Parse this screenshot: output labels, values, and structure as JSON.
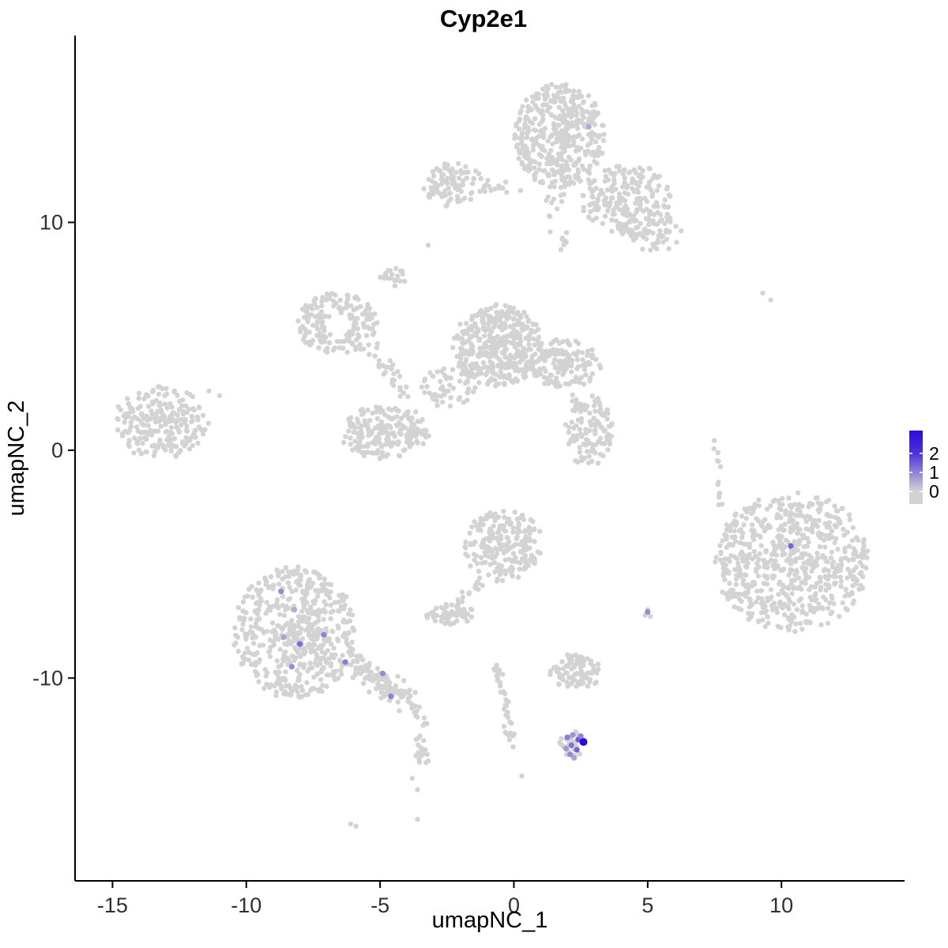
{
  "chart_data": {
    "type": "scatter",
    "title": "Cyp2e1",
    "xlabel": "umapNC_1",
    "ylabel": "umapNC_2",
    "xlim": [
      -16.4,
      14.6
    ],
    "ylim": [
      -18.9,
      18.2
    ],
    "x_ticks": [
      -15,
      -10,
      -5,
      0,
      5,
      10
    ],
    "y_ticks": [
      -10,
      0,
      10
    ],
    "grid": false,
    "legend_position": "right",
    "point_radius": 3.2,
    "colors": {
      "background": "#FFFFFF",
      "axis": "#000000",
      "tick_label": "#303030",
      "point_low": "#D3D3D3",
      "point_high": "#2A0BDE"
    },
    "legend": {
      "ticks": [
        2,
        1,
        0
      ],
      "vmax": 2.5,
      "low": "#D3D3D3",
      "high": "#2A0BDE"
    },
    "clusters": [
      {
        "cx": 1.7,
        "cy": 13.8,
        "rx": 1.7,
        "ry": 2.3,
        "n": 420
      },
      {
        "cx": 4.2,
        "cy": 11.0,
        "rx": 1.7,
        "ry": 1.6,
        "n": 200
      },
      {
        "cx": 5.3,
        "cy": 9.6,
        "rx": 1.0,
        "ry": 0.9,
        "n": 60
      },
      {
        "cx": -2.3,
        "cy": 11.7,
        "rx": 1.1,
        "ry": 1.0,
        "n": 90
      },
      {
        "cx": -6.6,
        "cy": 5.5,
        "rx": 1.5,
        "ry": 1.4,
        "n": 170,
        "inner": 0.3
      },
      {
        "cx": -4.5,
        "cy": 7.6,
        "rx": 0.5,
        "ry": 0.4,
        "n": 22
      },
      {
        "cx": -0.6,
        "cy": 4.6,
        "rx": 1.7,
        "ry": 1.8,
        "n": 380
      },
      {
        "cx": 1.9,
        "cy": 3.8,
        "rx": 1.4,
        "ry": 1.1,
        "n": 150
      },
      {
        "cx": 2.8,
        "cy": 0.8,
        "rx": 0.9,
        "ry": 1.6,
        "n": 110
      },
      {
        "cx": -4.8,
        "cy": 0.8,
        "rx": 1.7,
        "ry": 1.2,
        "n": 200
      },
      {
        "cx": -2.6,
        "cy": 2.9,
        "rx": 1.2,
        "ry": 1.1,
        "n": 55
      },
      {
        "cx": -13.2,
        "cy": 1.2,
        "rx": 1.8,
        "ry": 1.6,
        "n": 230
      },
      {
        "cx": 10.4,
        "cy": -4.9,
        "rx": 2.9,
        "ry": 3.1,
        "n": 650,
        "pow": 0.55
      },
      {
        "cx": -0.4,
        "cy": -4.2,
        "rx": 1.5,
        "ry": 1.6,
        "n": 210
      },
      {
        "cx": -2.4,
        "cy": -7.2,
        "rx": 0.9,
        "ry": 0.5,
        "n": 55
      },
      {
        "cx": -8.2,
        "cy": -8.0,
        "rx": 2.3,
        "ry": 2.9,
        "n": 520
      },
      {
        "cx": 2.3,
        "cy": -9.7,
        "rx": 1.0,
        "ry": 0.8,
        "n": 85
      },
      {
        "cx": 2.2,
        "cy": -12.9,
        "rx": 0.55,
        "ry": 0.6,
        "n": 26
      }
    ],
    "strands": [
      {
        "x1": -1.3,
        "y1": 11.6,
        "x2": 0.4,
        "y2": 11.4,
        "n": 16,
        "jitter": 0.3
      },
      {
        "x1": 1.4,
        "y1": 11.2,
        "x2": 1.9,
        "y2": 9.0,
        "n": 18,
        "jitter": 0.45
      },
      {
        "x1": -5.4,
        "y1": 4.4,
        "x2": -3.9,
        "y2": 2.5,
        "n": 30,
        "jitter": 0.4
      },
      {
        "x1": 2.2,
        "y1": 2.4,
        "x2": 2.7,
        "y2": 1.7,
        "n": 10,
        "jitter": 0.2
      },
      {
        "x1": -6.2,
        "y1": -9.2,
        "x2": -3.7,
        "y2": -11.2,
        "n": 130,
        "jitter": 0.55
      },
      {
        "x1": -3.5,
        "y1": -11.6,
        "x2": -3.4,
        "y2": -13.7,
        "n": 24,
        "jitter": 0.25
      },
      {
        "x1": -0.7,
        "y1": -9.4,
        "x2": -0.3,
        "y2": -11.3,
        "n": 20,
        "jitter": 0.2
      },
      {
        "x1": -0.3,
        "y1": -11.3,
        "x2": -0.1,
        "y2": -13.0,
        "n": 16,
        "jitter": 0.18
      },
      {
        "x1": 7.6,
        "y1": 0.9,
        "x2": 7.7,
        "y2": -2.6,
        "n": 13,
        "jitter": 0.15
      },
      {
        "x1": -1.2,
        "y1": -5.7,
        "x2": -2.1,
        "y2": -6.8,
        "n": 16,
        "jitter": 0.25
      }
    ],
    "singles": [
      [
        9.3,
        6.9
      ],
      [
        9.6,
        6.6
      ],
      [
        5.0,
        -7.0
      ],
      [
        5.1,
        -7.3
      ],
      [
        4.9,
        -7.25
      ],
      [
        -3.8,
        -14.4
      ],
      [
        -3.6,
        -14.9
      ],
      [
        -3.6,
        -16.2
      ],
      [
        -6.1,
        -16.4
      ],
      [
        -5.9,
        -16.5
      ],
      [
        -3.2,
        9.0
      ],
      [
        -11.4,
        2.6
      ],
      [
        -11.0,
        2.4
      ],
      [
        0.3,
        -14.3
      ]
    ],
    "expression_points": [
      {
        "x": 2.0,
        "y": -12.6,
        "v": 1.1
      },
      {
        "x": 2.2,
        "y": -12.5,
        "v": 0.8
      },
      {
        "x": 2.4,
        "y": -12.7,
        "v": 1.5
      },
      {
        "x": 2.6,
        "y": -12.8,
        "v": 2.5,
        "r": 5
      },
      {
        "x": 2.15,
        "y": -12.95,
        "v": 1.2
      },
      {
        "x": 1.95,
        "y": -13.1,
        "v": 0.7
      },
      {
        "x": 2.35,
        "y": -13.15,
        "v": 1.4
      },
      {
        "x": 2.1,
        "y": -13.35,
        "v": 0.9
      },
      {
        "x": 2.25,
        "y": -13.5,
        "v": 0.6
      },
      {
        "x": 2.5,
        "y": -12.55,
        "v": 1.0
      },
      {
        "x": -8.7,
        "y": -6.2,
        "v": 0.9
      },
      {
        "x": -8.2,
        "y": -7.0,
        "v": 0.5
      },
      {
        "x": -8.0,
        "y": -8.5,
        "v": 1.3
      },
      {
        "x": -7.1,
        "y": -8.1,
        "v": 1.0
      },
      {
        "x": -8.3,
        "y": -9.5,
        "v": 0.9
      },
      {
        "x": -6.3,
        "y": -9.3,
        "v": 1.1
      },
      {
        "x": -4.9,
        "y": -9.8,
        "v": 0.9
      },
      {
        "x": -4.6,
        "y": -10.8,
        "v": 1.0
      },
      {
        "x": -8.6,
        "y": -8.2,
        "v": 0.6
      },
      {
        "x": 10.35,
        "y": -4.2,
        "v": 1.4
      },
      {
        "x": 5.0,
        "y": -7.1,
        "v": 0.9
      },
      {
        "x": 2.8,
        "y": 14.2,
        "v": 0.5
      }
    ]
  }
}
